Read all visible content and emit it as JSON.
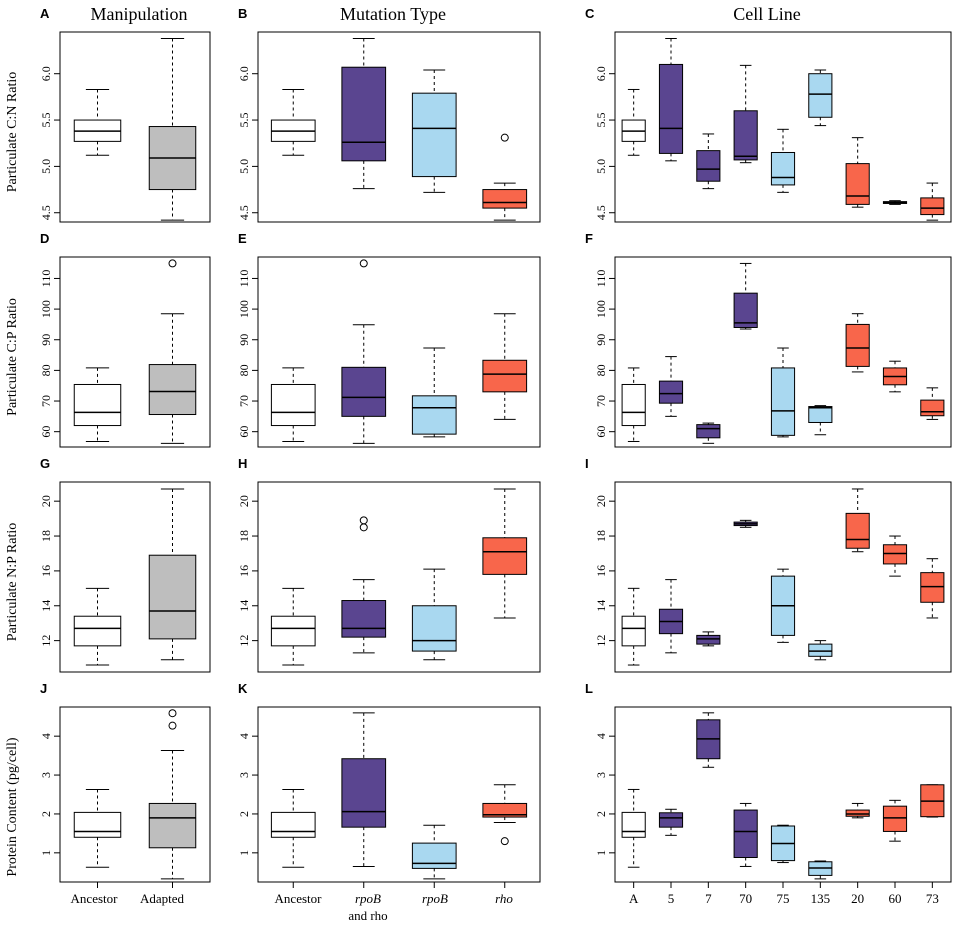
{
  "column_titles": [
    "Manipulation",
    "Mutation Type",
    "Cell Line"
  ],
  "row_ylabels": [
    "Particulate C:N Ratio",
    "Particulate C:P Ratio",
    "Particulate N:P Ratio",
    "Protein Content (pg/cell)"
  ],
  "x_labels": {
    "manipulation": [
      "Ancestor",
      "Adapted"
    ],
    "mutation": [
      "Ancestor",
      "rpoB",
      "and rho",
      "rpoB",
      "rho"
    ],
    "cell_line": [
      "A",
      "5",
      "7",
      "70",
      "75",
      "135",
      "20",
      "60",
      "73"
    ]
  },
  "colors": {
    "ancestor": "#ffffff",
    "adapted": "#bebebe",
    "both": "#5a4590",
    "rpoB": "#a9d8f0",
    "rho": "#f8664b"
  },
  "chart_data": [
    {
      "panel": "A",
      "type": "boxplot",
      "title": "Manipulation",
      "ylabel": "Particulate C:N Ratio",
      "ylim": [
        4.4,
        6.45
      ],
      "yticks": [
        4.5,
        5.0,
        5.5,
        6.0
      ],
      "categories": [
        "Ancestor",
        "Adapted"
      ],
      "colors": [
        "ancestor",
        "adapted"
      ],
      "boxes": [
        {
          "min": 5.12,
          "q1": 5.27,
          "median": 5.38,
          "q3": 5.5,
          "max": 5.83,
          "outliers": []
        },
        {
          "min": 4.42,
          "q1": 4.75,
          "median": 5.09,
          "q3": 5.43,
          "max": 6.38,
          "outliers": []
        }
      ]
    },
    {
      "panel": "B",
      "type": "boxplot",
      "title": "Mutation Type",
      "ylim": [
        4.4,
        6.45
      ],
      "yticks": [
        4.5,
        5.0,
        5.5,
        6.0
      ],
      "categories": [
        "Ancestor",
        "rpoB and rho",
        "rpoB",
        "rho"
      ],
      "colors": [
        "ancestor",
        "both",
        "rpoB",
        "rho"
      ],
      "boxes": [
        {
          "min": 5.12,
          "q1": 5.27,
          "median": 5.38,
          "q3": 5.5,
          "max": 5.83,
          "outliers": []
        },
        {
          "min": 4.76,
          "q1": 5.06,
          "median": 5.26,
          "q3": 6.07,
          "max": 6.38,
          "outliers": []
        },
        {
          "min": 4.72,
          "q1": 4.89,
          "median": 5.41,
          "q3": 5.79,
          "max": 6.04,
          "outliers": []
        },
        {
          "min": 4.42,
          "q1": 4.55,
          "median": 4.61,
          "q3": 4.75,
          "max": 4.82,
          "outliers": [
            5.31
          ]
        }
      ]
    },
    {
      "panel": "C",
      "type": "boxplot",
      "title": "Cell Line",
      "ylim": [
        4.4,
        6.45
      ],
      "yticks": [
        4.5,
        5.0,
        5.5,
        6.0
      ],
      "categories": [
        "A",
        "5",
        "7",
        "70",
        "75",
        "135",
        "20",
        "60",
        "73"
      ],
      "colors": [
        "ancestor",
        "both",
        "both",
        "both",
        "rpoB",
        "rpoB",
        "rho",
        "rho",
        "rho"
      ],
      "boxes": [
        {
          "min": 5.12,
          "q1": 5.27,
          "median": 5.38,
          "q3": 5.5,
          "max": 5.83,
          "outliers": []
        },
        {
          "min": 5.06,
          "q1": 5.14,
          "median": 5.41,
          "q3": 6.1,
          "max": 6.38,
          "outliers": []
        },
        {
          "min": 4.76,
          "q1": 4.84,
          "median": 4.97,
          "q3": 5.17,
          "max": 5.35,
          "outliers": []
        },
        {
          "min": 5.04,
          "q1": 5.07,
          "median": 5.11,
          "q3": 5.6,
          "max": 6.09,
          "outliers": []
        },
        {
          "min": 4.72,
          "q1": 4.8,
          "median": 4.88,
          "q3": 5.15,
          "max": 5.4,
          "outliers": []
        },
        {
          "min": 5.44,
          "q1": 5.53,
          "median": 5.78,
          "q3": 6.0,
          "max": 6.04,
          "outliers": []
        },
        {
          "min": 4.56,
          "q1": 4.59,
          "median": 4.68,
          "q3": 5.03,
          "max": 5.31,
          "outliers": []
        },
        {
          "min": 4.59,
          "q1": 4.6,
          "median": 4.61,
          "q3": 4.62,
          "max": 4.63,
          "outliers": []
        },
        {
          "min": 4.42,
          "q1": 4.48,
          "median": 4.55,
          "q3": 4.66,
          "max": 4.82,
          "outliers": []
        }
      ]
    },
    {
      "panel": "D",
      "type": "boxplot",
      "ylabel": "Particulate C:P Ratio",
      "ylim": [
        55,
        117
      ],
      "yticks": [
        60,
        70,
        80,
        90,
        100,
        110
      ],
      "categories": [
        "Ancestor",
        "Adapted"
      ],
      "colors": [
        "ancestor",
        "adapted"
      ],
      "boxes": [
        {
          "min": 56.8,
          "q1": 62.0,
          "median": 66.3,
          "q3": 75.4,
          "max": 80.8,
          "outliers": []
        },
        {
          "min": 56.2,
          "q1": 65.6,
          "median": 73.1,
          "q3": 81.9,
          "max": 98.5,
          "outliers": [
            114.9
          ]
        }
      ]
    },
    {
      "panel": "E",
      "type": "boxplot",
      "ylim": [
        55,
        117
      ],
      "yticks": [
        60,
        70,
        80,
        90,
        100,
        110
      ],
      "categories": [
        "Ancestor",
        "rpoB and rho",
        "rpoB",
        "rho"
      ],
      "colors": [
        "ancestor",
        "both",
        "rpoB",
        "rho"
      ],
      "boxes": [
        {
          "min": 56.8,
          "q1": 62.0,
          "median": 66.3,
          "q3": 75.4,
          "max": 80.8,
          "outliers": []
        },
        {
          "min": 56.2,
          "q1": 65.0,
          "median": 71.2,
          "q3": 81.0,
          "max": 94.9,
          "outliers": [
            114.9
          ]
        },
        {
          "min": 58.3,
          "q1": 59.2,
          "median": 67.8,
          "q3": 71.7,
          "max": 87.3,
          "outliers": []
        },
        {
          "min": 64.0,
          "q1": 73.0,
          "median": 78.8,
          "q3": 83.3,
          "max": 98.5,
          "outliers": []
        }
      ]
    },
    {
      "panel": "F",
      "type": "boxplot",
      "ylim": [
        55,
        117
      ],
      "yticks": [
        60,
        70,
        80,
        90,
        100,
        110
      ],
      "categories": [
        "A",
        "5",
        "7",
        "70",
        "75",
        "135",
        "20",
        "60",
        "73"
      ],
      "colors": [
        "ancestor",
        "both",
        "both",
        "both",
        "rpoB",
        "rpoB",
        "rho",
        "rho",
        "rho"
      ],
      "boxes": [
        {
          "min": 56.8,
          "q1": 62.0,
          "median": 66.3,
          "q3": 75.4,
          "max": 80.8,
          "outliers": []
        },
        {
          "min": 65.0,
          "q1": 69.3,
          "median": 72.4,
          "q3": 76.5,
          "max": 84.5,
          "outliers": []
        },
        {
          "min": 56.2,
          "q1": 58.0,
          "median": 61.0,
          "q3": 62.3,
          "max": 62.8,
          "outliers": []
        },
        {
          "min": 93.5,
          "q1": 94.0,
          "median": 95.5,
          "q3": 105.2,
          "max": 114.9,
          "outliers": []
        },
        {
          "min": 58.3,
          "q1": 58.8,
          "median": 66.8,
          "q3": 80.8,
          "max": 87.3,
          "outliers": []
        },
        {
          "min": 59.0,
          "q1": 63.0,
          "median": 67.8,
          "q3": 68.2,
          "max": 68.5,
          "outliers": []
        },
        {
          "min": 79.5,
          "q1": 81.3,
          "median": 87.3,
          "q3": 95.0,
          "max": 98.5,
          "outliers": []
        },
        {
          "min": 73.0,
          "q1": 75.3,
          "median": 78.0,
          "q3": 80.8,
          "max": 83.0,
          "outliers": []
        },
        {
          "min": 64.0,
          "q1": 65.2,
          "median": 66.5,
          "q3": 70.3,
          "max": 74.3,
          "outliers": []
        }
      ]
    },
    {
      "panel": "G",
      "type": "boxplot",
      "ylabel": "Particulate N:P Ratio",
      "ylim": [
        10.2,
        21.1
      ],
      "yticks": [
        12,
        14,
        16,
        18,
        20
      ],
      "categories": [
        "Ancestor",
        "Adapted"
      ],
      "colors": [
        "ancestor",
        "adapted"
      ],
      "boxes": [
        {
          "min": 10.6,
          "q1": 11.7,
          "median": 12.7,
          "q3": 13.4,
          "max": 15.0,
          "outliers": []
        },
        {
          "min": 10.9,
          "q1": 12.1,
          "median": 13.7,
          "q3": 16.9,
          "max": 20.7,
          "outliers": []
        }
      ]
    },
    {
      "panel": "H",
      "type": "boxplot",
      "ylim": [
        10.2,
        21.1
      ],
      "yticks": [
        12,
        14,
        16,
        18,
        20
      ],
      "categories": [
        "Ancestor",
        "rpoB and rho",
        "rpoB",
        "rho"
      ],
      "colors": [
        "ancestor",
        "both",
        "rpoB",
        "rho"
      ],
      "boxes": [
        {
          "min": 10.6,
          "q1": 11.7,
          "median": 12.7,
          "q3": 13.4,
          "max": 15.0,
          "outliers": []
        },
        {
          "min": 11.3,
          "q1": 12.2,
          "median": 12.7,
          "q3": 14.3,
          "max": 15.5,
          "outliers": [
            18.5,
            18.9
          ]
        },
        {
          "min": 10.9,
          "q1": 11.4,
          "median": 12.0,
          "q3": 14.0,
          "max": 16.1,
          "outliers": []
        },
        {
          "min": 13.3,
          "q1": 15.8,
          "median": 17.1,
          "q3": 17.9,
          "max": 20.7,
          "outliers": []
        }
      ]
    },
    {
      "panel": "I",
      "type": "boxplot",
      "ylim": [
        10.2,
        21.1
      ],
      "yticks": [
        12,
        14,
        16,
        18,
        20
      ],
      "categories": [
        "A",
        "5",
        "7",
        "70",
        "75",
        "135",
        "20",
        "60",
        "73"
      ],
      "colors": [
        "ancestor",
        "both",
        "both",
        "both",
        "rpoB",
        "rpoB",
        "rho",
        "rho",
        "rho"
      ],
      "boxes": [
        {
          "min": 10.6,
          "q1": 11.7,
          "median": 12.7,
          "q3": 13.4,
          "max": 15.0,
          "outliers": []
        },
        {
          "min": 11.3,
          "q1": 12.4,
          "median": 13.1,
          "q3": 13.8,
          "max": 15.5,
          "outliers": []
        },
        {
          "min": 11.7,
          "q1": 11.8,
          "median": 12.1,
          "q3": 12.3,
          "max": 12.5,
          "outliers": []
        },
        {
          "min": 18.5,
          "q1": 18.6,
          "median": 18.7,
          "q3": 18.8,
          "max": 18.9,
          "outliers": []
        },
        {
          "min": 11.9,
          "q1": 12.3,
          "median": 14.0,
          "q3": 15.7,
          "max": 16.1,
          "outliers": []
        },
        {
          "min": 10.9,
          "q1": 11.1,
          "median": 11.4,
          "q3": 11.8,
          "max": 12.0,
          "outliers": []
        },
        {
          "min": 17.1,
          "q1": 17.3,
          "median": 17.8,
          "q3": 19.3,
          "max": 20.7,
          "outliers": []
        },
        {
          "min": 15.7,
          "q1": 16.4,
          "median": 17.0,
          "q3": 17.5,
          "max": 18.0,
          "outliers": []
        },
        {
          "min": 13.3,
          "q1": 14.2,
          "median": 15.1,
          "q3": 15.9,
          "max": 16.7,
          "outliers": []
        }
      ]
    },
    {
      "panel": "J",
      "type": "boxplot",
      "ylabel": "Protein Content (pg/cell)",
      "ylim": [
        0.25,
        4.75
      ],
      "yticks": [
        1,
        2,
        3,
        4
      ],
      "categories": [
        "Ancestor",
        "Adapted"
      ],
      "colors": [
        "ancestor",
        "adapted"
      ],
      "boxes": [
        {
          "min": 0.63,
          "q1": 1.4,
          "median": 1.55,
          "q3": 2.04,
          "max": 2.63,
          "outliers": []
        },
        {
          "min": 0.33,
          "q1": 1.13,
          "median": 1.9,
          "q3": 2.27,
          "max": 3.63,
          "outliers": [
            4.27,
            4.59
          ]
        }
      ]
    },
    {
      "panel": "K",
      "type": "boxplot",
      "ylim": [
        0.25,
        4.75
      ],
      "yticks": [
        1,
        2,
        3,
        4
      ],
      "categories": [
        "Ancestor",
        "rpoB and rho",
        "rpoB",
        "rho"
      ],
      "colors": [
        "ancestor",
        "both",
        "rpoB",
        "rho"
      ],
      "boxes": [
        {
          "min": 0.63,
          "q1": 1.4,
          "median": 1.55,
          "q3": 2.04,
          "max": 2.63,
          "outliers": []
        },
        {
          "min": 0.65,
          "q1": 1.66,
          "median": 2.06,
          "q3": 3.42,
          "max": 4.6,
          "outliers": []
        },
        {
          "min": 0.33,
          "q1": 0.6,
          "median": 0.73,
          "q3": 1.25,
          "max": 1.71,
          "outliers": []
        },
        {
          "min": 1.78,
          "q1": 1.92,
          "median": 1.98,
          "q3": 2.27,
          "max": 2.75,
          "outliers": [
            1.3
          ]
        }
      ]
    },
    {
      "panel": "L",
      "type": "boxplot",
      "ylim": [
        0.25,
        4.75
      ],
      "yticks": [
        1,
        2,
        3,
        4
      ],
      "categories": [
        "A",
        "5",
        "7",
        "70",
        "75",
        "135",
        "20",
        "60",
        "73"
      ],
      "colors": [
        "ancestor",
        "both",
        "both",
        "both",
        "rpoB",
        "rpoB",
        "rho",
        "rho",
        "rho"
      ],
      "boxes": [
        {
          "min": 0.63,
          "q1": 1.4,
          "median": 1.55,
          "q3": 2.04,
          "max": 2.63,
          "outliers": []
        },
        {
          "min": 1.45,
          "q1": 1.66,
          "median": 1.9,
          "q3": 2.03,
          "max": 2.12,
          "outliers": []
        },
        {
          "min": 3.2,
          "q1": 3.42,
          "median": 3.93,
          "q3": 4.42,
          "max": 4.6,
          "outliers": []
        },
        {
          "min": 0.65,
          "q1": 0.88,
          "median": 1.55,
          "q3": 2.1,
          "max": 2.27,
          "outliers": []
        },
        {
          "min": 0.75,
          "q1": 0.8,
          "median": 1.24,
          "q3": 1.69,
          "max": 1.71,
          "outliers": []
        },
        {
          "min": 0.33,
          "q1": 0.42,
          "median": 0.61,
          "q3": 0.77,
          "max": 0.79,
          "outliers": []
        },
        {
          "min": 1.9,
          "q1": 1.94,
          "median": 2.0,
          "q3": 2.1,
          "max": 2.27,
          "outliers": []
        },
        {
          "min": 1.3,
          "q1": 1.55,
          "median": 1.9,
          "q3": 2.2,
          "max": 2.35,
          "outliers": []
        },
        {
          "min": 1.92,
          "q1": 1.93,
          "median": 2.33,
          "q3": 2.75,
          "max": 2.75,
          "outliers": []
        }
      ]
    }
  ]
}
